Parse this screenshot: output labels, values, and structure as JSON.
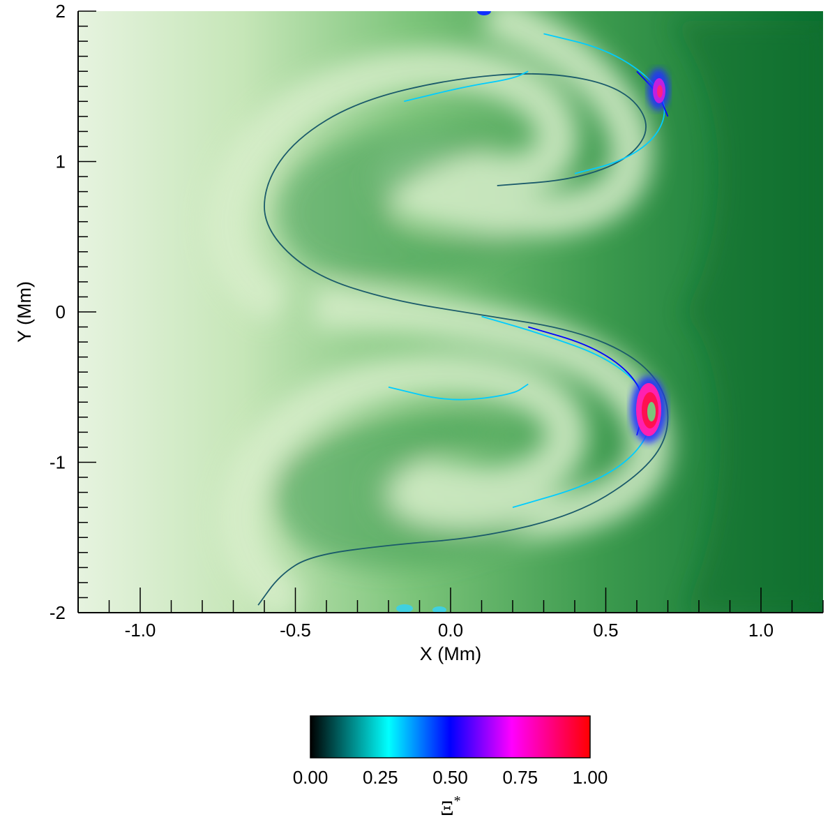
{
  "chart_data": {
    "type": "heatmap",
    "title": "",
    "xlabel": "X (Mm)",
    "ylabel": "Y (Mm)",
    "xlim": [
      -1.2,
      1.2
    ],
    "ylim": [
      -2,
      2
    ],
    "x_ticks": [
      {
        "value": -1.0,
        "label": "-1.0"
      },
      {
        "value": -0.5,
        "label": "-0.5"
      },
      {
        "value": 0.0,
        "label": "0.0"
      },
      {
        "value": 0.5,
        "label": "0.5"
      },
      {
        "value": 1.0,
        "label": "1.0"
      }
    ],
    "y_ticks": [
      {
        "value": -2,
        "label": "-2"
      },
      {
        "value": -1,
        "label": "-1"
      },
      {
        "value": 0,
        "label": "0"
      },
      {
        "value": 1,
        "label": "1"
      },
      {
        "value": 2,
        "label": "2"
      }
    ],
    "background_field": {
      "description_colors": [
        "#e0f0d8",
        "#0a7030"
      ]
    },
    "contour_field": {
      "name": "Ξ*",
      "levels": [
        0.1,
        0.2,
        0.3,
        0.4,
        0.5,
        0.6,
        0.7,
        0.8,
        0.9
      ],
      "contours": [
        {
          "level": 0.1,
          "points": [
            [
              -0.62,
              -1.95
            ],
            [
              -0.55,
              -1.75
            ],
            [
              -0.45,
              -1.62
            ],
            [
              -0.2,
              -1.55
            ],
            [
              0.1,
              -1.5
            ],
            [
              0.4,
              -1.35
            ],
            [
              0.6,
              -1.1
            ],
            [
              0.7,
              -0.85
            ],
            [
              0.7,
              -0.55
            ],
            [
              0.6,
              -0.3
            ],
            [
              0.4,
              -0.12
            ],
            [
              0.1,
              -0.02
            ],
            [
              -0.2,
              0.08
            ],
            [
              -0.45,
              0.25
            ],
            [
              -0.6,
              0.55
            ],
            [
              -0.6,
              0.85
            ],
            [
              -0.5,
              1.15
            ],
            [
              -0.3,
              1.4
            ],
            [
              0.0,
              1.55
            ],
            [
              0.3,
              1.6
            ],
            [
              0.55,
              1.5
            ],
            [
              0.65,
              1.25
            ],
            [
              0.58,
              1.02
            ],
            [
              0.4,
              0.88
            ],
            [
              0.15,
              0.84
            ]
          ]
        },
        {
          "level": 0.3,
          "points": [
            [
              0.1,
              -0.03
            ],
            [
              0.3,
              -0.15
            ],
            [
              0.5,
              -0.3
            ],
            [
              0.62,
              -0.5
            ],
            [
              0.66,
              -0.7
            ],
            [
              0.6,
              -0.95
            ],
            [
              0.45,
              -1.15
            ],
            [
              0.2,
              -1.3
            ]
          ]
        },
        {
          "level": 0.5,
          "points": [
            [
              0.25,
              -0.1
            ],
            [
              0.45,
              -0.22
            ],
            [
              0.58,
              -0.4
            ],
            [
              0.63,
              -0.6
            ],
            [
              0.6,
              -0.82
            ]
          ]
        },
        {
          "level": 0.3,
          "points": [
            [
              0.3,
              1.85
            ],
            [
              0.5,
              1.75
            ],
            [
              0.65,
              1.55
            ],
            [
              0.7,
              1.35
            ],
            [
              0.66,
              1.15
            ],
            [
              0.55,
              1.0
            ],
            [
              0.4,
              0.92
            ]
          ]
        },
        {
          "level": 0.5,
          "points": [
            [
              0.6,
              1.6
            ],
            [
              0.67,
              1.45
            ],
            [
              0.7,
              1.3
            ]
          ]
        },
        {
          "level": 0.3,
          "points": [
            [
              -0.2,
              -0.5
            ],
            [
              0.0,
              -0.6
            ],
            [
              0.2,
              -0.55
            ],
            [
              0.25,
              -0.48
            ]
          ]
        },
        {
          "level": 0.3,
          "points": [
            [
              -0.15,
              1.4
            ],
            [
              0.05,
              1.5
            ],
            [
              0.2,
              1.55
            ],
            [
              0.25,
              1.6
            ]
          ]
        }
      ]
    },
    "hotspots": [
      {
        "x": 0.64,
        "y": -0.68,
        "value": 1.0
      },
      {
        "x": 0.68,
        "y": 1.45,
        "value": 0.8
      },
      {
        "x": 0.1,
        "y": 2.0,
        "value": 0.55
      },
      {
        "x": 0.0,
        "y": -2.0,
        "value": 0.35
      }
    ],
    "colorbar": {
      "title": "Ξ",
      "title_superscript": "*",
      "vmin": 0.0,
      "vmax": 1.0,
      "colors": [
        "#000000",
        "#00ffff",
        "#0000ff",
        "#ff00ff",
        "#ff0000"
      ],
      "ticks": [
        {
          "value": 0.0,
          "label": "0.00"
        },
        {
          "value": 0.25,
          "label": "0.25"
        },
        {
          "value": 0.5,
          "label": "0.50"
        },
        {
          "value": 0.75,
          "label": "0.75"
        },
        {
          "value": 1.0,
          "label": "1.00"
        }
      ]
    }
  }
}
